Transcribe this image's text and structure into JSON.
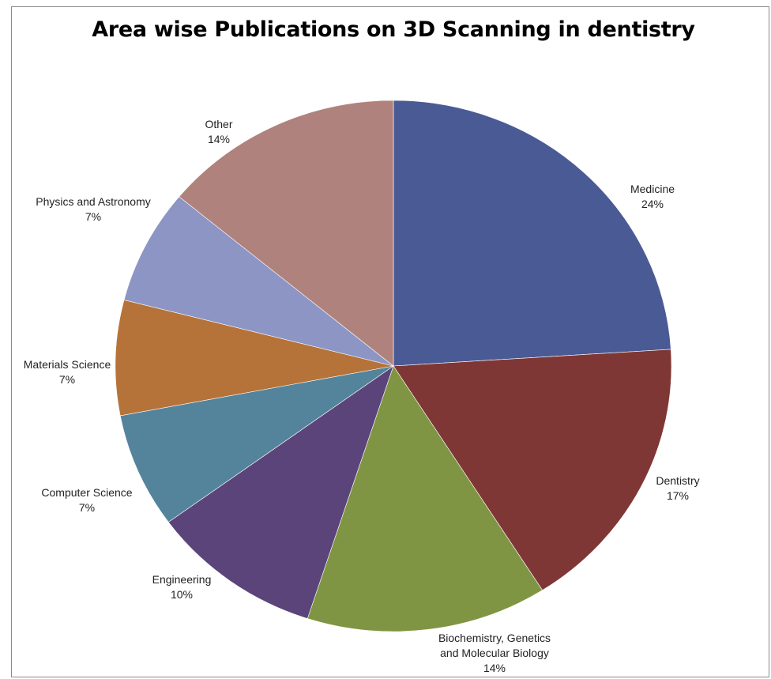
{
  "chart_data": {
    "type": "pie",
    "title": "Area wise Publications on 3D Scanning in dentistry",
    "slices": [
      {
        "label": "Medicine",
        "label_lines": [
          "Medicine"
        ],
        "percent_text": "24%",
        "value": 24,
        "color": "#4a5a94"
      },
      {
        "label": "Dentistry",
        "label_lines": [
          "Dentistry"
        ],
        "percent_text": "17%",
        "value": 17,
        "color": "#7f3736"
      },
      {
        "label": "Biochemistry, Genetics and Molecular Biology",
        "label_lines": [
          "Biochemistry, Genetics",
          "and Molecular Biology"
        ],
        "percent_text": "14%",
        "value": 14,
        "color": "#7f9543"
      },
      {
        "label": "Engineering",
        "label_lines": [
          "Engineering"
        ],
        "percent_text": "10%",
        "value": 10,
        "color": "#5b447a"
      },
      {
        "label": "Computer Science",
        "label_lines": [
          "Computer Science"
        ],
        "percent_text": "7%",
        "value": 7,
        "color": "#54849b"
      },
      {
        "label": "Materials Science",
        "label_lines": [
          "Materials Science"
        ],
        "percent_text": "7%",
        "value": 7,
        "color": "#b5733a"
      },
      {
        "label": "Physics and Astronomy",
        "label_lines": [
          "Physics and Astronomy"
        ],
        "percent_text": "7%",
        "value": 7,
        "color": "#8c95c4"
      },
      {
        "label": "Other",
        "label_lines": [
          "Other"
        ],
        "percent_text": "14%",
        "value": 14,
        "color": "#b0827d"
      }
    ]
  }
}
